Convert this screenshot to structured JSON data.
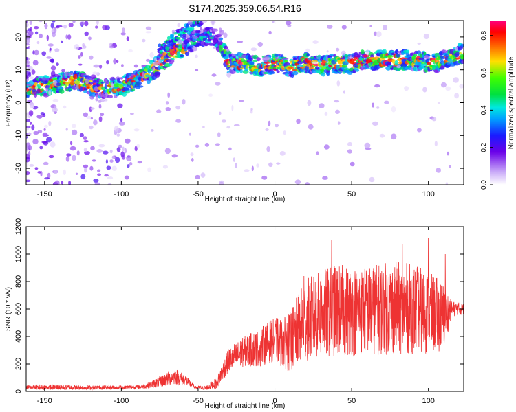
{
  "figure_title": "S174.2025.359.06.54.R16",
  "chart_data": [
    {
      "type": "heatmap",
      "title": "S174.2025.359.06.54.R16",
      "xlabel": "Height of straight line (km)",
      "ylabel": "Frequency (Hz)",
      "xlim": [
        -162,
        123
      ],
      "ylim": [
        -25,
        25
      ],
      "xticks": [
        -150,
        -100,
        -50,
        0,
        50,
        100
      ],
      "yticks": [
        -20,
        -10,
        0,
        10,
        20
      ],
      "grid": false,
      "colorbar": {
        "label": "Normalized spectral amplitude",
        "range": [
          0.0,
          0.88
        ],
        "ticks": [
          0.0,
          0.2,
          0.4,
          0.6,
          0.8
        ],
        "colormap": "rainbow (white-purple-blue-cyan-green-yellow-red-magenta)"
      },
      "ridge": {
        "description": "Main signal frequency ridge (approximate center frequency vs height)",
        "x": [
          -162,
          -150,
          -140,
          -130,
          -120,
          -110,
          -100,
          -90,
          -80,
          -70,
          -60,
          -50,
          -45,
          -40,
          -35,
          -30,
          -20,
          -10,
          0,
          10,
          20,
          30,
          40,
          50,
          60,
          70,
          80,
          90,
          100,
          110,
          120
        ],
        "y": [
          4,
          5,
          6,
          7,
          5,
          4,
          5,
          7,
          10,
          14,
          17,
          20,
          20,
          20,
          17,
          12,
          12,
          11,
          12,
          11,
          12,
          11,
          12,
          12,
          13,
          13,
          13,
          13,
          12,
          13,
          15
        ]
      },
      "secondary_ridge": {
        "description": "Faint upper branch",
        "x": [
          -75,
          -65,
          -55,
          -48
        ],
        "y": [
          16,
          20,
          23,
          25
        ]
      }
    },
    {
      "type": "line",
      "title": "",
      "xlabel": "Height of straight line (km)",
      "ylabel": "SNR (10 * v/v)",
      "xlim": [
        -162,
        123
      ],
      "ylim": [
        0,
        1200
      ],
      "xticks": [
        -150,
        -100,
        -50,
        0,
        50,
        100
      ],
      "yticks": [
        0,
        200,
        400,
        600,
        800,
        1000,
        1200
      ],
      "grid": false,
      "series": [
        {
          "name": "SNR",
          "color": "#ee3333",
          "envelope_x": [
            -162,
            -140,
            -120,
            -100,
            -85,
            -75,
            -65,
            -58,
            -52,
            -45,
            -38,
            -30,
            -20,
            -10,
            0,
            5,
            10,
            15,
            20,
            30,
            40,
            50,
            60,
            70,
            80,
            90,
            100,
            110,
            115,
            123
          ],
          "envelope_mean": [
            30,
            30,
            28,
            30,
            35,
            70,
            110,
            80,
            30,
            25,
            60,
            230,
            290,
            320,
            380,
            350,
            360,
            450,
            520,
            560,
            590,
            580,
            590,
            600,
            610,
            600,
            570,
            550,
            600,
            600
          ],
          "envelope_spread": [
            15,
            20,
            15,
            15,
            15,
            40,
            60,
            40,
            10,
            15,
            40,
            90,
            110,
            140,
            160,
            180,
            220,
            260,
            300,
            320,
            340,
            330,
            320,
            340,
            340,
            330,
            300,
            250,
            60,
            40
          ],
          "peaks": [
            {
              "x": 30,
              "y": 1200
            },
            {
              "x": 37,
              "y": 1100
            },
            {
              "x": 19,
              "y": 840
            },
            {
              "x": 83,
              "y": 1070
            },
            {
              "x": 100,
              "y": 1120
            },
            {
              "x": 111,
              "y": 1000
            }
          ]
        }
      ]
    }
  ]
}
